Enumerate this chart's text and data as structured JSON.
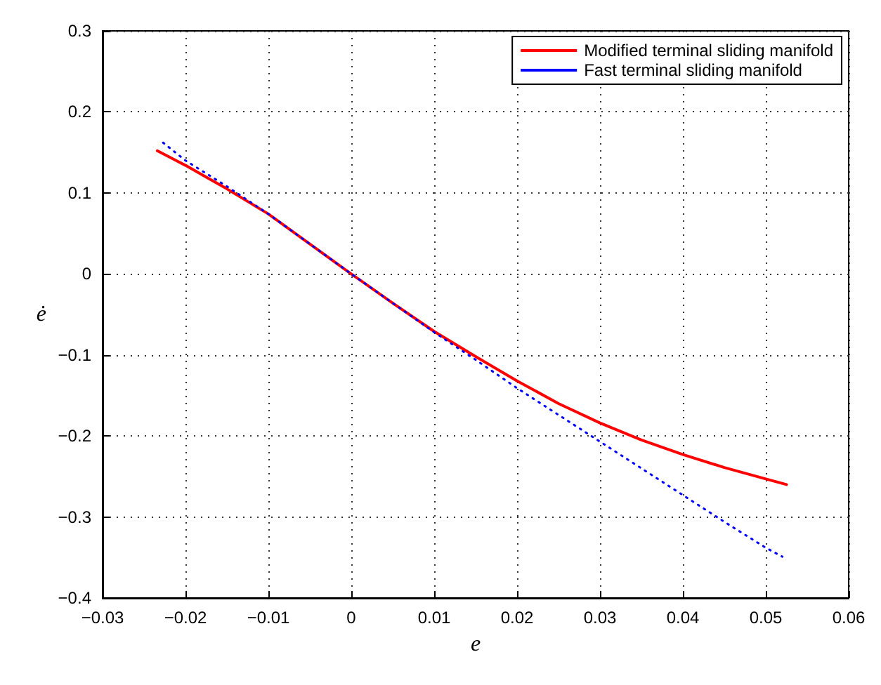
{
  "chart_data": {
    "type": "line",
    "xlabel": "e",
    "ylabel": "ė",
    "xlim": [
      -0.03,
      0.06
    ],
    "xticks": [
      {
        "value": -0.03,
        "label": "−0.03"
      },
      {
        "value": -0.02,
        "label": "−0.02"
      },
      {
        "value": -0.01,
        "label": "−0.01"
      },
      0,
      0.01,
      0.02,
      0.03,
      0.04,
      0.05,
      0.06
    ],
    "ylim": [
      -0.4,
      0.3
    ],
    "yticks": [
      {
        "value": -0.4,
        "label": "−0.4"
      },
      {
        "value": -0.3,
        "label": "−0.3"
      },
      {
        "value": -0.2,
        "label": "−0.2"
      },
      {
        "value": -0.1,
        "label": "−0.1"
      },
      0,
      0.1,
      0.2,
      0.3
    ],
    "grid": true,
    "legend": "top right",
    "series": [
      {
        "name": "Modified terminal sliding manifold",
        "color": "#ff0000",
        "line_style": "solid",
        "x": [
          -0.0234,
          -0.02,
          -0.015,
          -0.01,
          -0.005,
          0,
          0.005,
          0.01,
          0.015,
          0.02,
          0.025,
          0.03,
          0.035,
          0.04,
          0.045,
          0.05,
          0.0525
        ],
        "values": [
          0.152,
          0.134,
          0.105,
          0.074,
          0.037,
          0,
          -0.036,
          -0.071,
          -0.102,
          -0.132,
          -0.16,
          -0.184,
          -0.205,
          -0.223,
          -0.239,
          -0.253,
          -0.26
        ]
      },
      {
        "name": "Fast terminal sliding manifold",
        "color": "#0000ff",
        "line_style": "dotted",
        "x": [
          -0.0227,
          -0.02,
          -0.015,
          -0.01,
          -0.005,
          0,
          0.005,
          0.01,
          0.015,
          0.02,
          0.025,
          0.03,
          0.035,
          0.04,
          0.045,
          0.05,
          0.052
        ],
        "values": [
          0.162,
          0.14,
          0.108,
          0.074,
          0.037,
          0,
          -0.036,
          -0.072,
          -0.106,
          -0.141,
          -0.174,
          -0.207,
          -0.24,
          -0.273,
          -0.306,
          -0.338,
          -0.349
        ]
      }
    ]
  }
}
